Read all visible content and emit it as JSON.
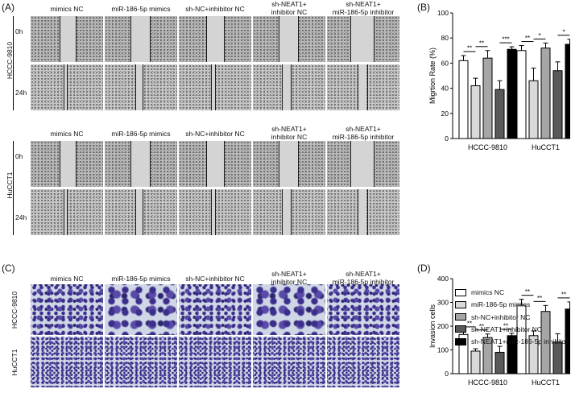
{
  "panels": {
    "a": "(A)",
    "b": "(B)",
    "c": "(C)",
    "d": "(D)"
  },
  "column_headers": [
    {
      "line1": "mimics NC",
      "line2": ""
    },
    {
      "line1": "miR-186-5p mimics",
      "line2": ""
    },
    {
      "line1": "sh-NC+inhibitor NC",
      "line2": ""
    },
    {
      "line1": "sh-NEAT1+",
      "line2": "inhibitor NC"
    },
    {
      "line1": "sh-NEAT1+",
      "line2": "miR-186-5p inhibitor"
    }
  ],
  "cell_lines": [
    "HCCC-9810",
    "HuCCT1"
  ],
  "timepoints": [
    "0h",
    "24h"
  ],
  "legend": [
    {
      "label": "mimics NC",
      "color": "#ffffff"
    },
    {
      "label": "miR-186-5p mimics",
      "color": "#d9d9d9"
    },
    {
      "label": "sh-NC+inhibitor NC",
      "color": "#a6a6a6"
    },
    {
      "label": "sh-NEAT1+inhibitor NC",
      "color": "#595959"
    },
    {
      "label": "sh-NEAT1+miR-186-5p inhibitor",
      "color": "#000000"
    }
  ],
  "chart_data": [
    {
      "type": "bar",
      "panel": "B",
      "ylabel": "Migrtion Rate (%)",
      "categories": [
        "HCCC-9810",
        "HuCCT1"
      ],
      "ylim": [
        0,
        100
      ],
      "yticks": [
        0,
        20,
        40,
        60,
        80,
        100
      ],
      "series": [
        {
          "name": "mimics NC",
          "values": [
            62,
            70
          ],
          "errors": [
            4,
            4
          ]
        },
        {
          "name": "miR-186-5p mimics",
          "values": [
            42,
            46
          ],
          "errors": [
            6,
            10
          ]
        },
        {
          "name": "sh-NC+inhibitor NC",
          "values": [
            64,
            72
          ],
          "errors": [
            6,
            4
          ]
        },
        {
          "name": "sh-NEAT1+inhibitor NC",
          "values": [
            39,
            54
          ],
          "errors": [
            7,
            7
          ]
        },
        {
          "name": "sh-NEAT1+miR-186-5p inhibitor",
          "values": [
            71,
            75
          ],
          "errors": [
            2,
            4
          ]
        }
      ],
      "significance": [
        {
          "group": 0,
          "from": 0,
          "to": 1,
          "label": "**"
        },
        {
          "group": 0,
          "from": 1,
          "to": 2,
          "label": "**"
        },
        {
          "group": 0,
          "from": 3,
          "to": 4,
          "label": "***"
        },
        {
          "group": 1,
          "from": 0,
          "to": 1,
          "label": "**"
        },
        {
          "group": 1,
          "from": 1,
          "to": 2,
          "label": "*"
        },
        {
          "group": 1,
          "from": 3,
          "to": 4,
          "label": "*"
        }
      ]
    },
    {
      "type": "bar",
      "panel": "D",
      "ylabel": "Invasion cells",
      "categories": [
        "HCCC-9810",
        "HuCCT1"
      ],
      "ylim": [
        0,
        400
      ],
      "yticks": [
        0,
        100,
        200,
        300,
        400
      ],
      "series": [
        {
          "name": "mimics NC",
          "values": [
            165,
            288
          ],
          "errors": [
            15,
            25
          ]
        },
        {
          "name": "miR-186-5p mimics",
          "values": [
            95,
            160
          ],
          "errors": [
            10,
            20
          ]
        },
        {
          "name": "sh-NC+inhibitor NC",
          "values": [
            152,
            262
          ],
          "errors": [
            15,
            25
          ]
        },
        {
          "name": "sh-NEAT1+inhibitor NC",
          "values": [
            90,
            133
          ],
          "errors": [
            25,
            35
          ]
        },
        {
          "name": "sh-NEAT1+miR-186-5p inhibitor",
          "values": [
            160,
            272
          ],
          "errors": [
            10,
            30
          ]
        }
      ],
      "significance": [
        {
          "group": 0,
          "from": 0,
          "to": 1,
          "label": "**"
        },
        {
          "group": 0,
          "from": 1,
          "to": 2,
          "label": "**"
        },
        {
          "group": 0,
          "from": 3,
          "to": 4,
          "label": "**"
        },
        {
          "group": 1,
          "from": 0,
          "to": 1,
          "label": "**"
        },
        {
          "group": 1,
          "from": 1,
          "to": 2,
          "label": "**"
        },
        {
          "group": 1,
          "from": 3,
          "to": 4,
          "label": "**"
        }
      ]
    }
  ]
}
